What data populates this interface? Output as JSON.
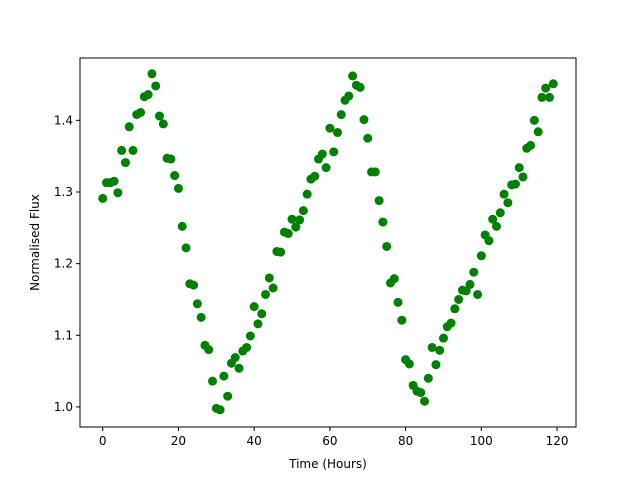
{
  "chart_data": {
    "type": "scatter",
    "xlabel": "Time (Hours)",
    "ylabel": "Normalised Flux",
    "xlim": [
      -6,
      125
    ],
    "ylim": [
      0.972,
      1.487
    ],
    "xticks": [
      0,
      20,
      40,
      60,
      80,
      100,
      120
    ],
    "yticks": [
      1.0,
      1.1,
      1.2,
      1.3,
      1.4
    ],
    "ytick_labels": [
      "1.0",
      "1.1",
      "1.2",
      "1.3",
      "1.4"
    ],
    "grid": false,
    "marker_color": "#008000",
    "series": [
      {
        "x": [
          0,
          1,
          2,
          3,
          4,
          5,
          6,
          7,
          8,
          9,
          10,
          11,
          12,
          13,
          14,
          15,
          16,
          17,
          18,
          19,
          20,
          21,
          22,
          23,
          24,
          25,
          26,
          27,
          28,
          29,
          30,
          31,
          32,
          33,
          34,
          35,
          36,
          37,
          38,
          39,
          40,
          41,
          42,
          43,
          44,
          45,
          46,
          47,
          48,
          49,
          50,
          51,
          52,
          53,
          54,
          55,
          56,
          57,
          58,
          59,
          60,
          61,
          62,
          63,
          64,
          65,
          66,
          67,
          68,
          69,
          70,
          71,
          72,
          73,
          74,
          75,
          76,
          77,
          78,
          79,
          80,
          81,
          82,
          83,
          84,
          85,
          86,
          87,
          88,
          89,
          90,
          91,
          92,
          93,
          94,
          95,
          96,
          97,
          98,
          99,
          100,
          101,
          102,
          103,
          104,
          105,
          106,
          107,
          108,
          109,
          110,
          111,
          112,
          113,
          114,
          115,
          116,
          117,
          118,
          119
        ],
        "y": [
          1.291,
          1.313,
          1.313,
          1.315,
          1.299,
          1.358,
          1.341,
          1.391,
          1.358,
          1.408,
          1.411,
          1.433,
          1.436,
          1.465,
          1.448,
          1.406,
          1.395,
          1.347,
          1.346,
          1.323,
          1.305,
          1.252,
          1.222,
          1.172,
          1.17,
          1.144,
          1.125,
          1.086,
          1.08,
          1.036,
          0.998,
          0.996,
          1.043,
          1.015,
          1.061,
          1.069,
          1.054,
          1.078,
          1.083,
          1.099,
          1.14,
          1.116,
          1.13,
          1.157,
          1.18,
          1.166,
          1.217,
          1.216,
          1.244,
          1.242,
          1.262,
          1.251,
          1.261,
          1.274,
          1.297,
          1.318,
          1.322,
          1.346,
          1.353,
          1.334,
          1.389,
          1.356,
          1.383,
          1.408,
          1.428,
          1.434,
          1.462,
          1.449,
          1.446,
          1.401,
          1.375,
          1.328,
          1.328,
          1.288,
          1.258,
          1.224,
          1.173,
          1.179,
          1.146,
          1.121,
          1.066,
          1.06,
          1.03,
          1.022,
          1.02,
          1.008,
          1.04,
          1.083,
          1.059,
          1.079,
          1.096,
          1.112,
          1.117,
          1.137,
          1.15,
          1.163,
          1.162,
          1.171,
          1.188,
          1.157,
          1.211,
          1.24,
          1.232,
          1.262,
          1.252,
          1.271,
          1.297,
          1.285,
          1.31,
          1.311,
          1.334,
          1.321,
          1.361,
          1.365,
          1.4,
          1.384,
          1.432,
          1.445,
          1.432,
          1.451
        ]
      }
    ]
  }
}
